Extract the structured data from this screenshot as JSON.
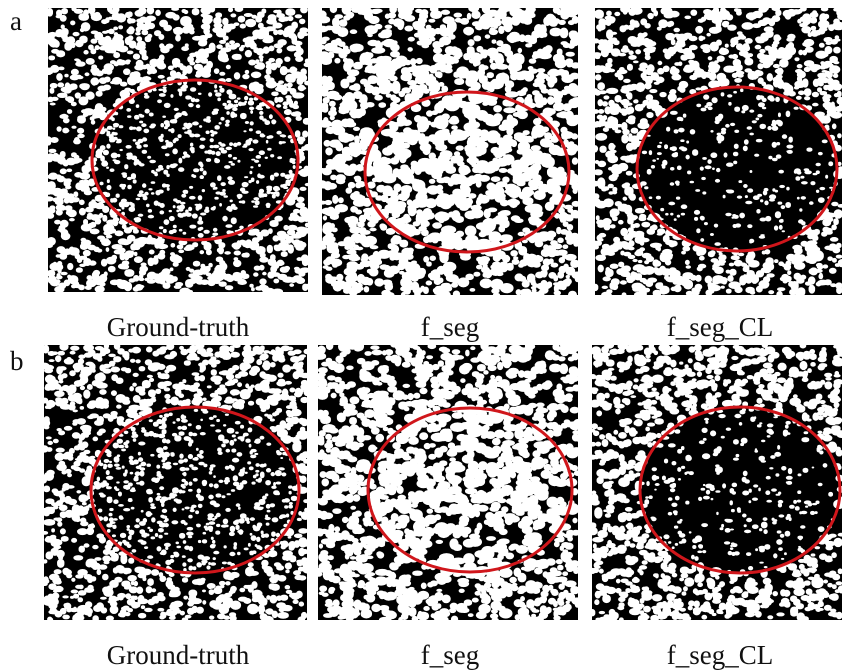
{
  "rows": [
    {
      "label": "a",
      "panels": [
        {
          "caption": "Ground-truth"
        },
        {
          "caption": "f_seg"
        },
        {
          "caption": "f_seg_CL"
        }
      ]
    },
    {
      "label": "b",
      "panels": [
        {
          "caption": "Ground-truth"
        },
        {
          "caption": "f_seg"
        },
        {
          "caption": "f_seg_CL"
        }
      ]
    }
  ]
}
